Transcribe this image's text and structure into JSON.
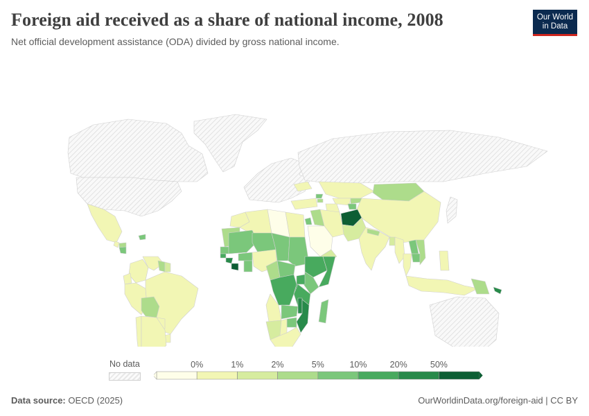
{
  "header": {
    "title": "Foreign aid received as a share of national income, 2008",
    "subtitle": "Net official development assistance (ODA) divided by gross national income."
  },
  "logo": {
    "line1": "Our World",
    "line2": "in Data",
    "bg_color": "#0b2a4f",
    "accent_color": "#ce261e"
  },
  "legend": {
    "no_data_label": "No data",
    "bins": [
      "0%",
      "1%",
      "2%",
      "5%",
      "10%",
      "20%",
      "50%"
    ],
    "colors": [
      "#fefee9",
      "#f2f6b4",
      "#d6ec9f",
      "#addc8b",
      "#7bc77b",
      "#48aa5e",
      "#288a4a",
      "#0d5e34"
    ]
  },
  "footer": {
    "source_label": "Data source:",
    "source_value": "OECD (2025)",
    "url_license": "OurWorldinData.org/foreign-aid | CC BY"
  },
  "chart_data": {
    "type": "choropleth",
    "year": 2008,
    "unit": "%",
    "scale_breaks": [
      0,
      1,
      2,
      5,
      10,
      20,
      50
    ],
    "regions": [
      {
        "name": "Afghanistan",
        "bin": 7
      },
      {
        "name": "Liberia",
        "bin": 7
      },
      {
        "name": "Mozambique",
        "bin": 6
      },
      {
        "name": "Malawi",
        "bin": 6
      },
      {
        "name": "Ethiopia",
        "bin": 5
      },
      {
        "name": "Somalia",
        "bin": 5
      },
      {
        "name": "Sierra Leone",
        "bin": 6
      },
      {
        "name": "Guinea-Bissau",
        "bin": 5
      },
      {
        "name": "Mali",
        "bin": 4
      },
      {
        "name": "Niger",
        "bin": 4
      },
      {
        "name": "Chad",
        "bin": 4
      },
      {
        "name": "Sudan",
        "bin": 4
      },
      {
        "name": "DR Congo",
        "bin": 5
      },
      {
        "name": "Tanzania",
        "bin": 5
      },
      {
        "name": "Uganda",
        "bin": 5
      },
      {
        "name": "Rwanda",
        "bin": 5
      },
      {
        "name": "Burundi",
        "bin": 6
      },
      {
        "name": "Zambia",
        "bin": 4
      },
      {
        "name": "Zimbabwe",
        "bin": 4
      },
      {
        "name": "Madagascar",
        "bin": 4
      },
      {
        "name": "Burkina Faso",
        "bin": 4
      },
      {
        "name": "Senegal",
        "bin": 4
      },
      {
        "name": "Ghana",
        "bin": 4
      },
      {
        "name": "Central African Republic",
        "bin": 4
      },
      {
        "name": "Kenya",
        "bin": 4
      },
      {
        "name": "Angola",
        "bin": 1
      },
      {
        "name": "Nigeria",
        "bin": 1
      },
      {
        "name": "Cameroon",
        "bin": 3
      },
      {
        "name": "Namibia",
        "bin": 2
      },
      {
        "name": "Botswana",
        "bin": 1
      },
      {
        "name": "South Africa",
        "bin": 1
      },
      {
        "name": "Egypt",
        "bin": 1
      },
      {
        "name": "Libya",
        "bin": 0
      },
      {
        "name": "Algeria",
        "bin": 1
      },
      {
        "name": "Morocco",
        "bin": 1
      },
      {
        "name": "Mauritania",
        "bin": 3
      },
      {
        "name": "Saudi Arabia",
        "bin": 0
      },
      {
        "name": "Iraq",
        "bin": 3
      },
      {
        "name": "Iran",
        "bin": 1
      },
      {
        "name": "Yemen",
        "bin": 2
      },
      {
        "name": "Jordan",
        "bin": 4
      },
      {
        "name": "Pakistan",
        "bin": 2
      },
      {
        "name": "India",
        "bin": 1
      },
      {
        "name": "Nepal",
        "bin": 3
      },
      {
        "name": "Bangladesh",
        "bin": 2
      },
      {
        "name": "Myanmar",
        "bin": 1
      },
      {
        "name": "Thailand",
        "bin": 1
      },
      {
        "name": "Laos",
        "bin": 4
      },
      {
        "name": "Cambodia",
        "bin": 4
      },
      {
        "name": "Vietnam",
        "bin": 3
      },
      {
        "name": "China",
        "bin": 1
      },
      {
        "name": "Mongolia",
        "bin": 3
      },
      {
        "name": "Kazakhstan",
        "bin": 1
      },
      {
        "name": "Kyrgyzstan",
        "bin": 3
      },
      {
        "name": "Tajikistan",
        "bin": 4
      },
      {
        "name": "Uzbekistan",
        "bin": 1
      },
      {
        "name": "Turkmenistan",
        "bin": 1
      },
      {
        "name": "Turkey",
        "bin": 1
      },
      {
        "name": "Georgia",
        "bin": 4
      },
      {
        "name": "Armenia",
        "bin": 3
      },
      {
        "name": "Ukraine",
        "bin": 1
      },
      {
        "name": "Indonesia",
        "bin": 1
      },
      {
        "name": "Philippines",
        "bin": 1
      },
      {
        "name": "Papua New Guinea",
        "bin": 3
      },
      {
        "name": "Solomon Islands",
        "bin": 6
      },
      {
        "name": "Mexico",
        "bin": 1
      },
      {
        "name": "Guatemala",
        "bin": 1
      },
      {
        "name": "Honduras",
        "bin": 3
      },
      {
        "name": "Nicaragua",
        "bin": 4
      },
      {
        "name": "Haiti",
        "bin": 4
      },
      {
        "name": "Colombia",
        "bin": 1
      },
      {
        "name": "Venezuela",
        "bin": 1
      },
      {
        "name": "Guyana",
        "bin": 3
      },
      {
        "name": "Suriname",
        "bin": 2
      },
      {
        "name": "Ecuador",
        "bin": 1
      },
      {
        "name": "Peru",
        "bin": 1
      },
      {
        "name": "Brazil",
        "bin": 1
      },
      {
        "name": "Bolivia",
        "bin": 3
      },
      {
        "name": "Paraguay",
        "bin": 1
      },
      {
        "name": "Argentina",
        "bin": 1
      },
      {
        "name": "Chile",
        "bin": 1
      },
      {
        "name": "Uruguay",
        "bin": 1
      },
      {
        "name": "United States",
        "bin": -1
      },
      {
        "name": "Canada",
        "bin": -1
      },
      {
        "name": "Greenland",
        "bin": -1
      },
      {
        "name": "Russia",
        "bin": -1
      },
      {
        "name": "Europe",
        "bin": -1
      },
      {
        "name": "Australia",
        "bin": -1
      },
      {
        "name": "Japan",
        "bin": -1
      }
    ]
  }
}
